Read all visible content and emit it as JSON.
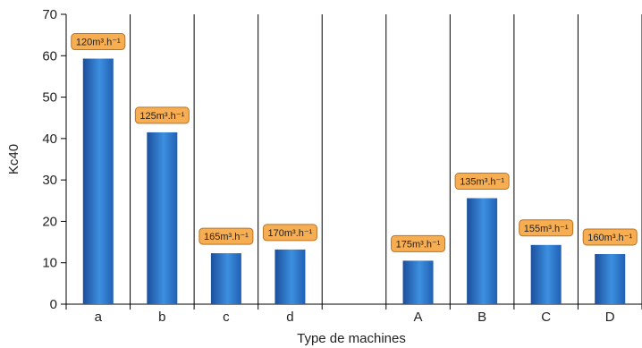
{
  "chart_data": {
    "type": "bar",
    "categories": [
      "a",
      "b",
      "c",
      "d",
      "",
      "A",
      "B",
      "C",
      "D"
    ],
    "values": [
      59.3,
      41.5,
      12.3,
      13.2,
      null,
      10.5,
      25.6,
      14.3,
      12.1
    ],
    "data_labels": [
      "120m³.h⁻¹",
      "125m³.h⁻¹",
      "165m³.h⁻¹",
      "170m³.h⁻¹",
      "",
      "175m³.h⁻¹",
      "135m³.h⁻¹",
      "155m³.h⁻¹",
      "160m³.h⁻¹"
    ],
    "title": "",
    "xlabel": "Type de machines",
    "ylabel": "Kc40",
    "ylim": [
      0,
      70
    ],
    "yticks": [
      0,
      10,
      20,
      30,
      40,
      50,
      60,
      70
    ],
    "grid": "vertical category separators",
    "legend": "none"
  },
  "colors": {
    "bar_dark": "#1b4f9c",
    "bar_light": "#3d8fe0",
    "label_fill": "#f7ad52",
    "label_stroke": "#b87424",
    "axis": "#000000"
  }
}
